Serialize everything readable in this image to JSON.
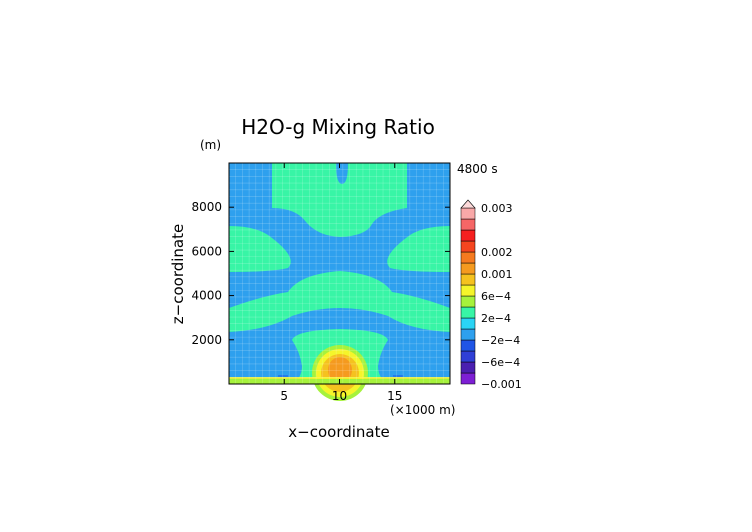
{
  "chart_data": {
    "type": "heatmap",
    "title": "H2O-g Mixing Ratio",
    "time_label": "4800 s",
    "xlabel": "x−coordinate",
    "ylabel": "z−coordinate",
    "x_unit": "(×1000 m)",
    "y_unit": "(m)",
    "xlim": [
      0,
      20
    ],
    "ylim": [
      0,
      10000
    ],
    "x_ticks": [
      {
        "v": 5,
        "label": "5"
      },
      {
        "v": 10,
        "label": "10"
      },
      {
        "v": 15,
        "label": "15"
      }
    ],
    "y_ticks": [
      {
        "v": 2000,
        "label": "2000"
      },
      {
        "v": 4000,
        "label": "4000"
      },
      {
        "v": 6000,
        "label": "6000"
      },
      {
        "v": 8000,
        "label": "8000"
      }
    ],
    "grid": true,
    "colorbar": {
      "levels_bottom_to_top": [
        {
          "color": "#7d1fd4",
          "label": "−0.001"
        },
        {
          "color": "#4a1fb0",
          "label": ""
        },
        {
          "color": "#2f3fd6",
          "label": "−6e−4"
        },
        {
          "color": "#1f55e6",
          "label": ""
        },
        {
          "color": "#2ea0ee",
          "label": "−2e−4"
        },
        {
          "color": "#2ad4f5",
          "label": ""
        },
        {
          "color": "#38f5a6",
          "label": "2e−4"
        },
        {
          "color": "#a6f23c",
          "label": ""
        },
        {
          "color": "#f5f52a",
          "label": "6e−4"
        },
        {
          "color": "#f5c21f",
          "label": ""
        },
        {
          "color": "#f59a1f",
          "label": "0.001"
        },
        {
          "color": "#f57a1f",
          "label": ""
        },
        {
          "color": "#f5451f",
          "label": "0.002"
        },
        {
          "color": "#f51f1f",
          "label": ""
        },
        {
          "color": "#f56666",
          "label": ""
        },
        {
          "color": "#f9a8a8",
          "label": "0.003"
        }
      ]
    }
  }
}
